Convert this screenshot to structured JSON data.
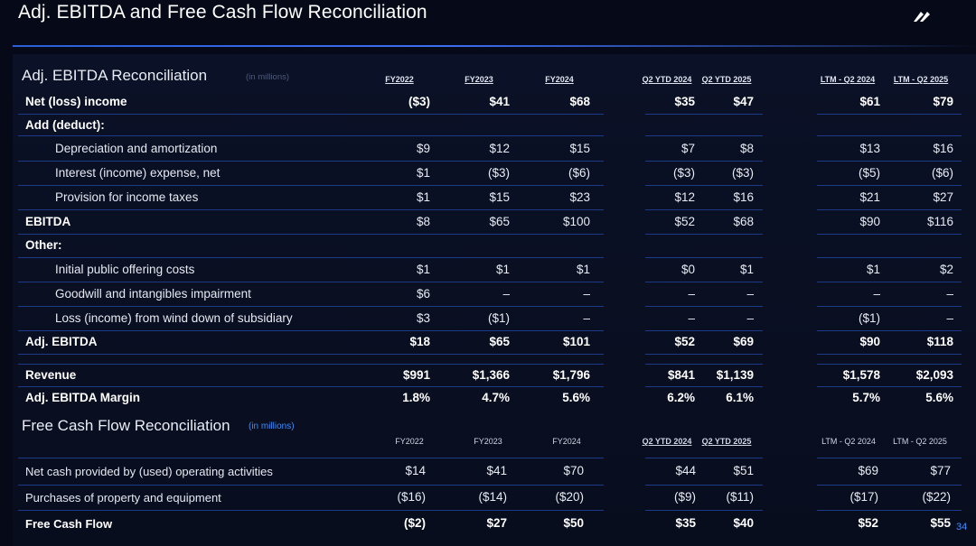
{
  "slide": {
    "title": "Adj. EBITDA and Free Cash Flow Reconciliation",
    "page_number": "34"
  },
  "ebitda": {
    "section_title": "Adj. EBITDA Reconciliation",
    "unit": "(in millions)",
    "columns": [
      "FY2022",
      "FY2023",
      "FY2024",
      "Q2 YTD 2024",
      "Q2 YTD 2025",
      "LTM - Q2 2024",
      "LTM - Q2 2025"
    ],
    "rows": [
      {
        "label": "Net (loss) income",
        "values": [
          "($3)",
          "$41",
          "$68",
          "$35",
          "$47",
          "$61",
          "$79"
        ]
      },
      {
        "label": "Add (deduct):",
        "values": []
      },
      {
        "label": "Depreciation and amortization",
        "values": [
          "$9",
          "$12",
          "$15",
          "$7",
          "$8",
          "$13",
          "$16"
        ]
      },
      {
        "label": "Interest (income) expense, net",
        "values": [
          "$1",
          "($3)",
          "($6)",
          "($3)",
          "($3)",
          "($5)",
          "($6)"
        ]
      },
      {
        "label": "Provision for income taxes",
        "values": [
          "$1",
          "$15",
          "$23",
          "$12",
          "$16",
          "$21",
          "$27"
        ]
      },
      {
        "label": "EBITDA",
        "values": [
          "$8",
          "$65",
          "$100",
          "$52",
          "$68",
          "$90",
          "$116"
        ]
      },
      {
        "label": "Other:",
        "values": []
      },
      {
        "label": "Initial public offering costs",
        "values": [
          "$1",
          "$1",
          "$1",
          "$0",
          "$1",
          "$1",
          "$2"
        ]
      },
      {
        "label": "Goodwill and intangibles impairment",
        "values": [
          "$6",
          "–",
          "–",
          "–",
          "–",
          "–",
          "–"
        ]
      },
      {
        "label": "Loss (income) from wind down of subsidiary",
        "values": [
          "$3",
          "($1)",
          "–",
          "–",
          "–",
          "($1)",
          "–"
        ]
      },
      {
        "label": "Adj. EBITDA",
        "values": [
          "$18",
          "$65",
          "$101",
          "$52",
          "$69",
          "$90",
          "$118"
        ]
      },
      {
        "label": "Revenue",
        "values": [
          "$991",
          "$1,366",
          "$1,796",
          "$841",
          "$1,139",
          "$1,578",
          "$2,093"
        ]
      },
      {
        "label": "Adj. EBITDA Margin",
        "values": [
          "1.8%",
          "4.7%",
          "5.6%",
          "6.2%",
          "6.1%",
          "5.7%",
          "5.6%"
        ]
      }
    ]
  },
  "fcf": {
    "section_title": "Free Cash Flow Reconciliation",
    "unit": "(in millions)",
    "columns": [
      "FY2022",
      "FY2023",
      "FY2024",
      "Q2 YTD 2024",
      "Q2 YTD 2025",
      "LTM - Q2 2024",
      "LTM - Q2 2025"
    ],
    "rows": [
      {
        "label": "Net cash provided by (used) operating activities",
        "values": [
          "$14",
          "$41",
          "$70",
          "$44",
          "$51",
          "$69",
          "$77"
        ]
      },
      {
        "label": "Purchases of property and equipment",
        "values": [
          "($16)",
          "($14)",
          "($20)",
          "($9)",
          "($11)",
          "($17)",
          "($22)"
        ]
      },
      {
        "label": "Free Cash Flow",
        "values": [
          "($2)",
          "$27",
          "$50",
          "$35",
          "$40",
          "$52",
          "$55"
        ]
      }
    ]
  },
  "colors": {
    "background": "#060a18",
    "accent": "#3f8cff",
    "rule": "#1d3a86"
  }
}
